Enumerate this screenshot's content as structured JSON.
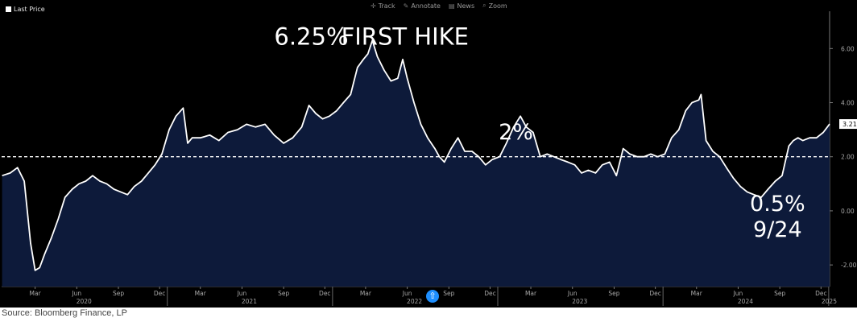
{
  "toolbar": {
    "items": [
      {
        "label": "Track",
        "icon": "crosshair-icon"
      },
      {
        "label": "Annotate",
        "icon": "pencil-icon"
      },
      {
        "label": "News",
        "icon": "news-icon"
      },
      {
        "label": "Zoom",
        "icon": "magnifier-icon"
      }
    ]
  },
  "legend": {
    "label": "Last Price"
  },
  "source": "Source: Bloomberg Finance, LP",
  "colors": {
    "background": "#000000",
    "area": "#0d1a3a",
    "line": "#ffffff",
    "reference": "#ffffff"
  },
  "chart_data": {
    "type": "area",
    "series": [
      {
        "name": "Last Price",
        "x": [
          "2020-01-02",
          "2020-01-20",
          "2020-02-05",
          "2020-02-20",
          "2020-03-05",
          "2020-03-15",
          "2020-03-25",
          "2020-04-05",
          "2020-04-20",
          "2020-05-05",
          "2020-05-20",
          "2020-06-05",
          "2020-06-20",
          "2020-07-05",
          "2020-07-20",
          "2020-08-05",
          "2020-08-20",
          "2020-09-05",
          "2020-09-20",
          "2020-10-05",
          "2020-10-20",
          "2020-11-05",
          "2020-11-20",
          "2020-12-05",
          "2020-12-20",
          "2021-01-05",
          "2021-01-20",
          "2021-02-05",
          "2021-02-15",
          "2021-02-25",
          "2021-03-15",
          "2021-04-05",
          "2021-04-25",
          "2021-05-15",
          "2021-06-05",
          "2021-06-25",
          "2021-07-15",
          "2021-08-05",
          "2021-08-25",
          "2021-09-15",
          "2021-10-05",
          "2021-10-25",
          "2021-11-10",
          "2021-11-25",
          "2021-12-10",
          "2021-12-25",
          "2022-01-10",
          "2022-01-25",
          "2022-02-10",
          "2022-02-25",
          "2022-03-10",
          "2022-03-20",
          "2022-03-30",
          "2022-04-10",
          "2022-04-25",
          "2022-05-10",
          "2022-05-25",
          "2022-06-05",
          "2022-06-15",
          "2022-06-30",
          "2022-07-15",
          "2022-07-30",
          "2022-08-15",
          "2022-08-25",
          "2022-09-05",
          "2022-09-20",
          "2022-10-05",
          "2022-10-20",
          "2022-11-05",
          "2022-11-20",
          "2022-12-05",
          "2022-12-20",
          "2023-01-05",
          "2023-01-20",
          "2023-02-05",
          "2023-02-20",
          "2023-03-05",
          "2023-03-20",
          "2023-04-05",
          "2023-04-20",
          "2023-05-05",
          "2023-05-20",
          "2023-06-05",
          "2023-06-20",
          "2023-07-05",
          "2023-07-20",
          "2023-08-05",
          "2023-08-20",
          "2023-09-05",
          "2023-09-20",
          "2023-10-05",
          "2023-10-20",
          "2023-11-05",
          "2023-11-20",
          "2023-12-05",
          "2023-12-20",
          "2024-01-05",
          "2024-01-20",
          "2024-02-05",
          "2024-02-20",
          "2024-03-05",
          "2024-03-20",
          "2024-03-25",
          "2024-04-05",
          "2024-04-20",
          "2024-05-05",
          "2024-05-20",
          "2024-06-05",
          "2024-06-20",
          "2024-07-05",
          "2024-07-20",
          "2024-08-05",
          "2024-08-20",
          "2024-09-05",
          "2024-09-20",
          "2024-10-05",
          "2024-10-15",
          "2024-10-25",
          "2024-11-05",
          "2024-11-20",
          "2024-12-05",
          "2024-12-20",
          "2025-01-03"
        ],
        "y": [
          1.3,
          1.4,
          1.6,
          1.1,
          -1.2,
          -2.2,
          -2.1,
          -1.6,
          -1.0,
          -0.3,
          0.5,
          0.8,
          1.0,
          1.1,
          1.3,
          1.1,
          1.0,
          0.8,
          0.7,
          0.6,
          0.9,
          1.1,
          1.4,
          1.7,
          2.1,
          3.0,
          3.5,
          3.8,
          2.5,
          2.7,
          2.7,
          2.8,
          2.6,
          2.9,
          3.0,
          3.2,
          3.1,
          3.2,
          2.8,
          2.5,
          2.7,
          3.1,
          3.9,
          3.6,
          3.4,
          3.5,
          3.7,
          4.0,
          4.3,
          5.3,
          5.6,
          5.8,
          6.3,
          5.7,
          5.2,
          4.8,
          4.9,
          5.6,
          4.9,
          4.0,
          3.2,
          2.7,
          2.3,
          2.0,
          1.8,
          2.3,
          2.7,
          2.2,
          2.2,
          2.0,
          1.7,
          1.9,
          2.0,
          2.5,
          3.1,
          3.5,
          3.1,
          2.9,
          2.0,
          2.1,
          2.0,
          1.9,
          1.8,
          1.7,
          1.4,
          1.5,
          1.4,
          1.7,
          1.8,
          1.3,
          2.3,
          2.1,
          2.0,
          2.0,
          2.1,
          2.0,
          2.1,
          2.7,
          3.0,
          3.7,
          4.0,
          4.1,
          4.3,
          2.6,
          2.2,
          2.0,
          1.6,
          1.2,
          0.9,
          0.7,
          0.6,
          0.5,
          0.8,
          1.1,
          1.3,
          2.4,
          2.6,
          2.7,
          2.6,
          2.7,
          2.7,
          2.9,
          3.21
        ]
      }
    ],
    "reference_lines": [
      {
        "y": 2.0,
        "style": "dashed"
      }
    ],
    "annotations": [
      {
        "text": "6.25%",
        "x": "2021-11-15",
        "y": 6.15
      },
      {
        "text": "FIRST HIKE",
        "x": "2022-06-10",
        "y": 6.15
      },
      {
        "text": "2%",
        "x": "2023-02-10",
        "y": 2.65
      },
      {
        "text": "0.5%",
        "x": "2024-09-10",
        "y": 0.0
      },
      {
        "text": "9/24",
        "x": "2024-09-10",
        "y": -0.95
      }
    ],
    "last_value_label": "3.21",
    "y_ticks": [
      {
        "value": 6,
        "label": "6.00"
      },
      {
        "value": 4,
        "label": "4.00"
      },
      {
        "value": 2,
        "label": "2.00"
      },
      {
        "value": 0,
        "label": "0.00"
      },
      {
        "value": -2,
        "label": "-2.00"
      }
    ],
    "ylim": [
      -2.8,
      7.2
    ],
    "xlim": [
      "2020-01-01",
      "2025-01-03"
    ],
    "x_month_ticks": [
      {
        "date": "2020-03-15",
        "label": "Mar"
      },
      {
        "date": "2020-06-15",
        "label": "Jun"
      },
      {
        "date": "2020-09-15",
        "label": "Sep"
      },
      {
        "date": "2020-12-15",
        "label": "Dec"
      },
      {
        "date": "2021-03-15",
        "label": "Mar"
      },
      {
        "date": "2021-06-15",
        "label": "Jun"
      },
      {
        "date": "2021-09-15",
        "label": "Sep"
      },
      {
        "date": "2021-12-15",
        "label": "Dec"
      },
      {
        "date": "2022-03-15",
        "label": "Mar"
      },
      {
        "date": "2022-06-15",
        "label": "Jun"
      },
      {
        "date": "2022-09-15",
        "label": "Sep"
      },
      {
        "date": "2022-12-15",
        "label": "Dec"
      },
      {
        "date": "2023-03-15",
        "label": "Mar"
      },
      {
        "date": "2023-06-15",
        "label": "Jun"
      },
      {
        "date": "2023-09-15",
        "label": "Sep"
      },
      {
        "date": "2023-12-15",
        "label": "Dec"
      },
      {
        "date": "2024-03-15",
        "label": "Mar"
      },
      {
        "date": "2024-06-15",
        "label": "Jun"
      },
      {
        "date": "2024-09-15",
        "label": "Sep"
      },
      {
        "date": "2024-12-15",
        "label": "Dec"
      }
    ],
    "x_year_ticks": [
      {
        "date": "2020-07-01",
        "label": "2020"
      },
      {
        "date": "2021-07-01",
        "label": "2021"
      },
      {
        "date": "2022-07-01",
        "label": "2022"
      },
      {
        "date": "2023-07-01",
        "label": "2023"
      },
      {
        "date": "2024-07-01",
        "label": "2024"
      },
      {
        "date": "2025-01-02",
        "label": "2025"
      }
    ],
    "year_boundaries": [
      "2021-01-01",
      "2022-01-01",
      "2023-01-01",
      "2024-01-01",
      "2025-01-01"
    ],
    "grid": false,
    "legend": "top-left"
  }
}
